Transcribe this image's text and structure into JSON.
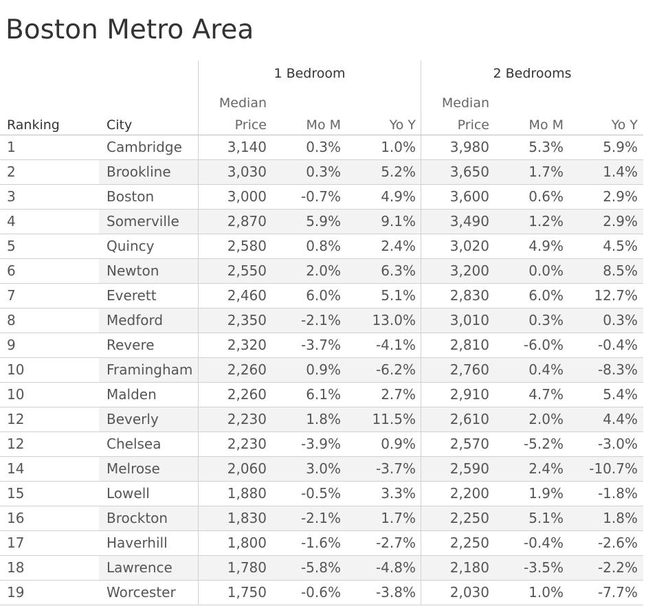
{
  "title": "Boston Metro Area",
  "chart_data": {
    "type": "table",
    "title": "Boston Metro Area",
    "groups": [
      "1 Bedroom",
      "2 Bedrooms"
    ],
    "columns": {
      "ranking": "Ranking",
      "city": "City",
      "median_line1": "Median",
      "median_line2": "Price",
      "mom": "Mo M",
      "yoy": "Yo Y"
    },
    "rows": [
      {
        "rank": "1",
        "city": "Cambridge",
        "b1_price": "3,140",
        "b1_mom": "0.3%",
        "b1_yoy": "1.0%",
        "b2_price": "3,980",
        "b2_mom": "5.3%",
        "b2_yoy": "5.9%"
      },
      {
        "rank": "2",
        "city": "Brookline",
        "b1_price": "3,030",
        "b1_mom": "0.3%",
        "b1_yoy": "5.2%",
        "b2_price": "3,650",
        "b2_mom": "1.7%",
        "b2_yoy": "1.4%"
      },
      {
        "rank": "3",
        "city": "Boston",
        "b1_price": "3,000",
        "b1_mom": "-0.7%",
        "b1_yoy": "4.9%",
        "b2_price": "3,600",
        "b2_mom": "0.6%",
        "b2_yoy": "2.9%"
      },
      {
        "rank": "4",
        "city": "Somerville",
        "b1_price": "2,870",
        "b1_mom": "5.9%",
        "b1_yoy": "9.1%",
        "b2_price": "3,490",
        "b2_mom": "1.2%",
        "b2_yoy": "2.9%"
      },
      {
        "rank": "5",
        "city": "Quincy",
        "b1_price": "2,580",
        "b1_mom": "0.8%",
        "b1_yoy": "2.4%",
        "b2_price": "3,020",
        "b2_mom": "4.9%",
        "b2_yoy": "4.5%"
      },
      {
        "rank": "6",
        "city": "Newton",
        "b1_price": "2,550",
        "b1_mom": "2.0%",
        "b1_yoy": "6.3%",
        "b2_price": "3,200",
        "b2_mom": "0.0%",
        "b2_yoy": "8.5%"
      },
      {
        "rank": "7",
        "city": "Everett",
        "b1_price": "2,460",
        "b1_mom": "6.0%",
        "b1_yoy": "5.1%",
        "b2_price": "2,830",
        "b2_mom": "6.0%",
        "b2_yoy": "12.7%"
      },
      {
        "rank": "8",
        "city": "Medford",
        "b1_price": "2,350",
        "b1_mom": "-2.1%",
        "b1_yoy": "13.0%",
        "b2_price": "3,010",
        "b2_mom": "0.3%",
        "b2_yoy": "0.3%"
      },
      {
        "rank": "9",
        "city": "Revere",
        "b1_price": "2,320",
        "b1_mom": "-3.7%",
        "b1_yoy": "-4.1%",
        "b2_price": "2,810",
        "b2_mom": "-6.0%",
        "b2_yoy": "-0.4%"
      },
      {
        "rank": "10",
        "city": "Framingham",
        "b1_price": "2,260",
        "b1_mom": "0.9%",
        "b1_yoy": "-6.2%",
        "b2_price": "2,760",
        "b2_mom": "0.4%",
        "b2_yoy": "-8.3%"
      },
      {
        "rank": "10",
        "city": "Malden",
        "b1_price": "2,260",
        "b1_mom": "6.1%",
        "b1_yoy": "2.7%",
        "b2_price": "2,910",
        "b2_mom": "4.7%",
        "b2_yoy": "5.4%"
      },
      {
        "rank": "12",
        "city": "Beverly",
        "b1_price": "2,230",
        "b1_mom": "1.8%",
        "b1_yoy": "11.5%",
        "b2_price": "2,610",
        "b2_mom": "2.0%",
        "b2_yoy": "4.4%"
      },
      {
        "rank": "12",
        "city": "Chelsea",
        "b1_price": "2,230",
        "b1_mom": "-3.9%",
        "b1_yoy": "0.9%",
        "b2_price": "2,570",
        "b2_mom": "-5.2%",
        "b2_yoy": "-3.0%"
      },
      {
        "rank": "14",
        "city": "Melrose",
        "b1_price": "2,060",
        "b1_mom": "3.0%",
        "b1_yoy": "-3.7%",
        "b2_price": "2,590",
        "b2_mom": "2.4%",
        "b2_yoy": "-10.7%"
      },
      {
        "rank": "15",
        "city": "Lowell",
        "b1_price": "1,880",
        "b1_mom": "-0.5%",
        "b1_yoy": "3.3%",
        "b2_price": "2,200",
        "b2_mom": "1.9%",
        "b2_yoy": "-1.8%"
      },
      {
        "rank": "16",
        "city": "Brockton",
        "b1_price": "1,830",
        "b1_mom": "-2.1%",
        "b1_yoy": "1.7%",
        "b2_price": "2,250",
        "b2_mom": "5.1%",
        "b2_yoy": "1.8%"
      },
      {
        "rank": "17",
        "city": "Haverhill",
        "b1_price": "1,800",
        "b1_mom": "-1.6%",
        "b1_yoy": "-2.7%",
        "b2_price": "2,250",
        "b2_mom": "-0.4%",
        "b2_yoy": "-2.6%"
      },
      {
        "rank": "18",
        "city": "Lawrence",
        "b1_price": "1,780",
        "b1_mom": "-5.8%",
        "b1_yoy": "-4.8%",
        "b2_price": "2,180",
        "b2_mom": "-3.5%",
        "b2_yoy": "-2.2%"
      },
      {
        "rank": "19",
        "city": "Worcester",
        "b1_price": "1,750",
        "b1_mom": "-0.6%",
        "b1_yoy": "-3.8%",
        "b2_price": "2,030",
        "b2_mom": "1.0%",
        "b2_yoy": "-7.7%"
      }
    ],
    "striped_rows": true
  }
}
